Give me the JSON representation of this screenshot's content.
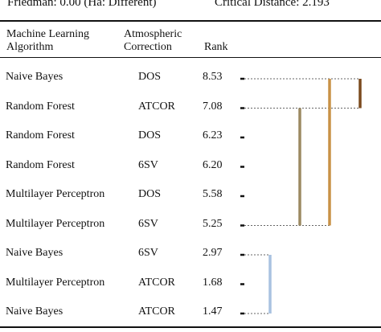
{
  "caption": {
    "friedman": "Friedman: 0.00 (Ha: Different)",
    "critical_distance": "Critical Distance: 2.193"
  },
  "headers": {
    "algorithm_line1": "Machine Learning",
    "algorithm_line2": "Algorithm",
    "correction_line1": "Atmospheric",
    "correction_line2": "Correction",
    "rank": "Rank"
  },
  "chart_data": {
    "type": "table",
    "rows": [
      {
        "algorithm": "Naive Bayes",
        "correction": "DOS",
        "rank": "8.53",
        "value": 8.53
      },
      {
        "algorithm": "Random Forest",
        "correction": "ATCOR",
        "rank": "7.08",
        "value": 7.08
      },
      {
        "algorithm": "Random Forest",
        "correction": "DOS",
        "rank": "6.23",
        "value": 6.23
      },
      {
        "algorithm": "Random Forest",
        "correction": "6SV",
        "rank": "6.20",
        "value": 6.2
      },
      {
        "algorithm": "Multilayer Perceptron",
        "correction": "DOS",
        "rank": "5.58",
        "value": 5.58
      },
      {
        "algorithm": "Multilayer Perceptron",
        "correction": "6SV",
        "rank": "5.25",
        "value": 5.25
      },
      {
        "algorithm": "Naive Bayes",
        "correction": "6SV",
        "rank": "2.97",
        "value": 2.97
      },
      {
        "algorithm": "Multilayer Perceptron",
        "correction": "ATCOR",
        "rank": "1.68",
        "value": 1.68
      },
      {
        "algorithm": "Naive Bayes",
        "correction": "ATCOR",
        "rank": "1.47",
        "value": 1.47
      }
    ],
    "groups": [
      {
        "from_row": 0,
        "to_row": 1,
        "color": "#7b4a1e"
      },
      {
        "from_row": 0,
        "to_row": 5,
        "color": "#c89247"
      },
      {
        "from_row": 1,
        "to_row": 5,
        "color": "#9c8a62"
      },
      {
        "from_row": 6,
        "to_row": 8,
        "color": "#a9c2e0"
      }
    ]
  }
}
